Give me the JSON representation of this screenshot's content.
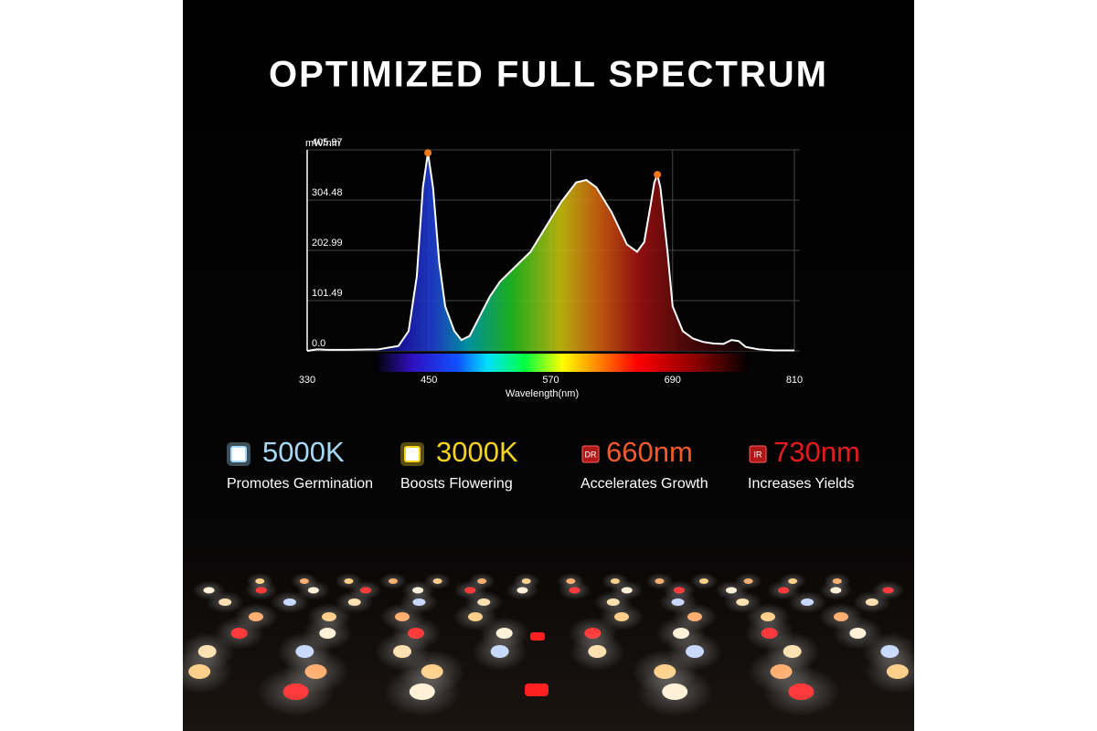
{
  "title": "OPTIMIZED FULL SPECTRUM",
  "chart_data": {
    "type": "area",
    "y_label": "mW/nm",
    "x_label": "Wavelength(nm)",
    "x": [
      330,
      340,
      350,
      370,
      400,
      420,
      430,
      438,
      444,
      449,
      454,
      460,
      466,
      475,
      482,
      490,
      500,
      510,
      520,
      535,
      550,
      565,
      580,
      595,
      605,
      615,
      630,
      645,
      655,
      662,
      668,
      672,
      675,
      678,
      685,
      690,
      700,
      710,
      720,
      730,
      740,
      748,
      755,
      762,
      775,
      790,
      810
    ],
    "values": [
      0,
      3,
      2,
      2,
      3,
      10,
      40,
      150,
      330,
      400,
      330,
      180,
      90,
      40,
      22,
      30,
      70,
      110,
      140,
      170,
      200,
      250,
      300,
      340,
      345,
      330,
      280,
      215,
      200,
      220,
      290,
      340,
      356,
      330,
      200,
      90,
      40,
      25,
      18,
      15,
      14,
      22,
      20,
      8,
      3,
      1,
      1
    ],
    "color": "#ffffff",
    "xlim": [
      330,
      810
    ],
    "xticks": [
      330,
      450,
      570,
      690,
      810
    ],
    "ylim": [
      0,
      405.97
    ],
    "yticks": [
      {
        "value": 0,
        "label": "0.0"
      },
      101.49,
      202.99,
      304.48,
      405.97
    ],
    "grid": true
  },
  "features": [
    {
      "label": "5000K",
      "description": "Promotes Germination",
      "color": "#a6d8f7"
    },
    {
      "label": "3000K",
      "description": "Boosts Flowering",
      "color": "#f5d21f"
    },
    {
      "badge": "DR",
      "label": "660nm",
      "description": "Accelerates Growth",
      "color": "#f2592b"
    },
    {
      "badge": "IR",
      "label": "730nm",
      "description": "Increases Yields",
      "color": "#e31b1b"
    }
  ]
}
